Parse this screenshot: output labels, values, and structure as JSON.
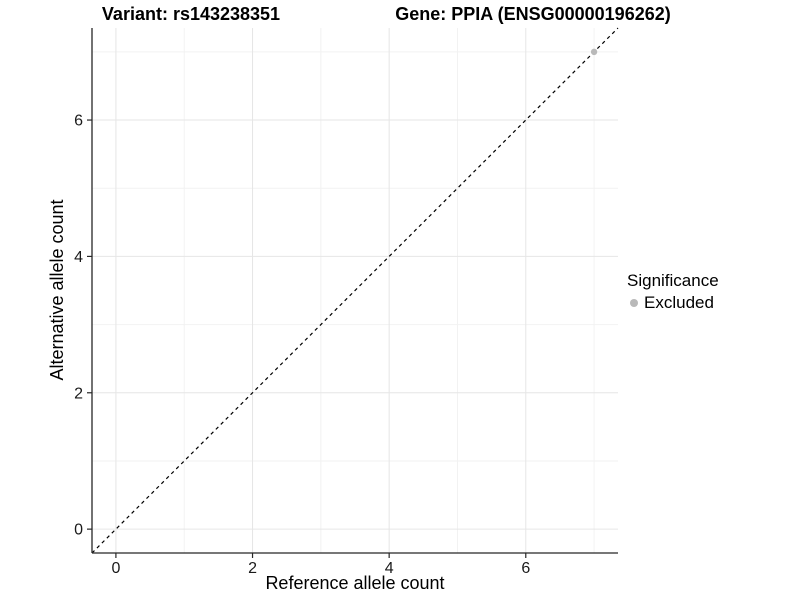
{
  "header": {
    "variant_title": "Variant: rs143238351",
    "gene_title": "Gene: PPIA (ENSG00000196262)"
  },
  "axes": {
    "x_label": "Reference allele count",
    "y_label": "Alternative allele count"
  },
  "legend": {
    "title": "Significance",
    "position": "right",
    "items": [
      {
        "label": "Excluded",
        "color": "#b9b9b9"
      }
    ]
  },
  "colors": {
    "background": "#ffffff",
    "grid_major": "#e6e6e6",
    "grid_minor": "#f2f2f2",
    "axis_line": "#262626",
    "tick_label": "#1a1a1a",
    "reference_line": "#000000",
    "point_excluded": "#b9b9b9"
  },
  "chart_data": {
    "type": "scatter",
    "titles": [
      "Variant: rs143238351",
      "Gene: PPIA (ENSG00000196262)"
    ],
    "xlabel": "Reference allele count",
    "ylabel": "Alternative allele count",
    "x_ticks": [
      0,
      2,
      4,
      6
    ],
    "y_ticks": [
      0,
      2,
      4,
      6
    ],
    "x_minor": [
      1,
      3,
      5,
      7
    ],
    "y_minor": [
      1,
      3,
      5,
      7
    ],
    "xlim": [
      -0.35,
      7.35
    ],
    "ylim": [
      -0.35,
      7.35
    ],
    "grid": true,
    "legend_position": "right",
    "series": [
      {
        "name": "Excluded",
        "color": "#b9b9b9",
        "points": [
          {
            "x": 7,
            "y": 7
          }
        ]
      }
    ],
    "reference_line": {
      "slope": 1,
      "intercept": 0,
      "style": "dashed",
      "color": "#000000"
    }
  }
}
